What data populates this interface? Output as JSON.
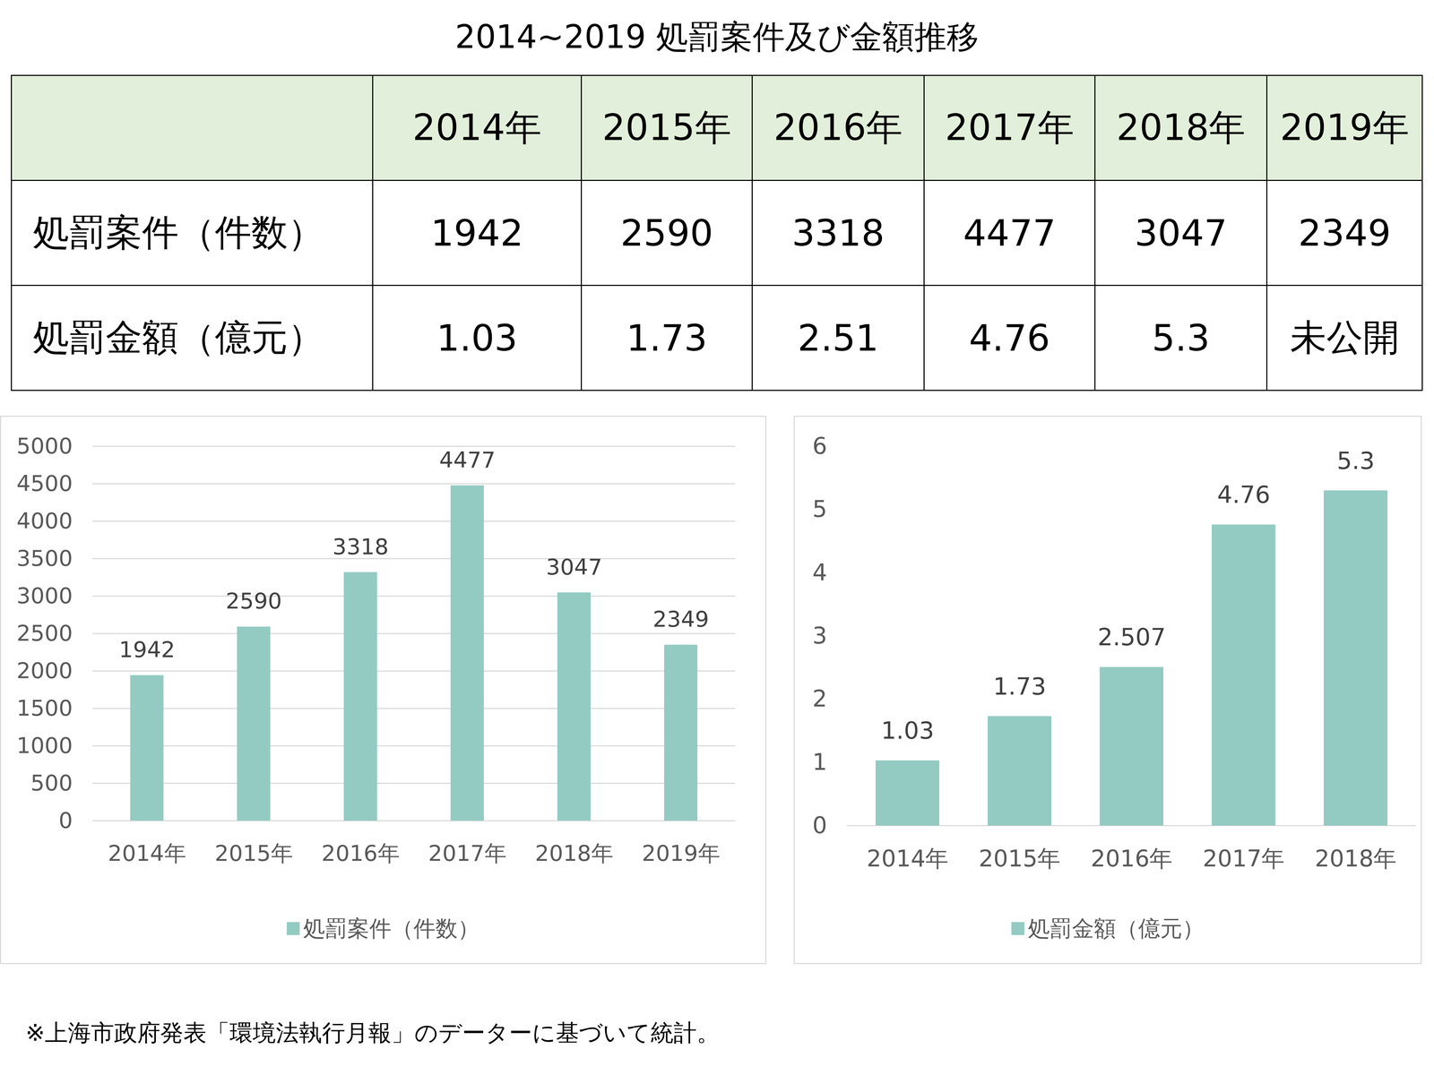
{
  "title": "2014~2019 処罰案件及び金額推移",
  "table": {
    "header": [
      null,
      "2014年",
      "2015年",
      "2016年",
      "2017年",
      "2018年",
      "2019年"
    ],
    "rows": [
      [
        "処罰案件（件数）",
        "1942",
        "2590",
        "3318",
        "4477",
        "3047",
        "2349"
      ],
      [
        "処罰金額（億元）",
        "1.03",
        "1.73",
        "2.51",
        "4.76",
        "5.3",
        "未公開"
      ]
    ]
  },
  "chart_data": [
    {
      "type": "bar",
      "categories": [
        "2014年",
        "2015年",
        "2016年",
        "2017年",
        "2018年",
        "2019年"
      ],
      "series": [
        {
          "name": "処罰案件（件数）",
          "color": "#93cbc3",
          "values": [
            1942,
            2590,
            3318,
            4477,
            3047,
            2349
          ]
        }
      ],
      "ylim": [
        0,
        5000
      ],
      "yticks": [
        0,
        500,
        1000,
        1500,
        2000,
        2500,
        3000,
        3500,
        4000,
        4500,
        5000
      ],
      "grid": true,
      "data_labels": true,
      "legend": "bottom"
    },
    {
      "type": "bar",
      "categories": [
        "2014年",
        "2015年",
        "2016年",
        "2017年",
        "2018年"
      ],
      "series": [
        {
          "name": "処罰金額（億元）",
          "color": "#93cbc3",
          "values": [
            1.03,
            1.73,
            2.507,
            4.76,
            5.3
          ]
        }
      ],
      "ylim": [
        0,
        6
      ],
      "yticks": [
        0,
        1,
        2,
        3,
        4,
        5,
        6
      ],
      "grid": false,
      "data_labels": true,
      "legend": "bottom"
    }
  ],
  "footnote": "※上海市政府発表「環境法執行月報」のデーターに基づいて統計。"
}
